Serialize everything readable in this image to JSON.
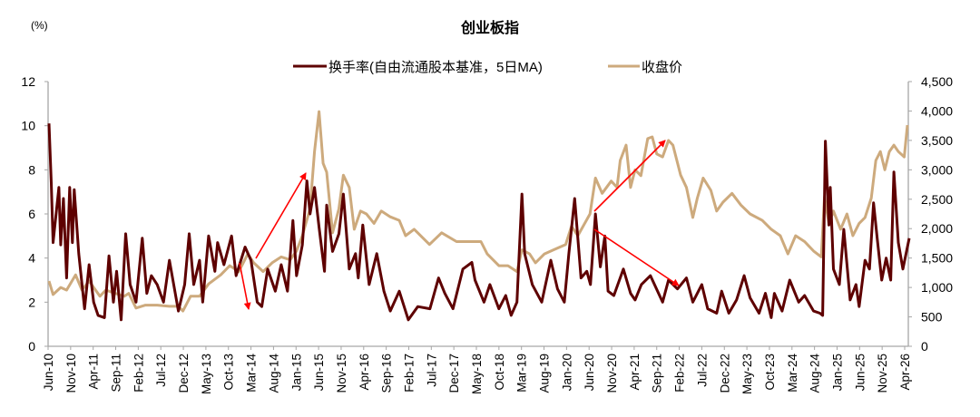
{
  "chart_data": {
    "type": "line",
    "title": "创业板指",
    "left_unit": "(%)",
    "x_unit": "months since Jun-10",
    "legend_position": "top-center",
    "ylim_left": [
      0,
      12
    ],
    "ylim_right": [
      0,
      4500
    ],
    "left_ticks": [
      "0",
      "2",
      "4",
      "6",
      "8",
      "10",
      "12"
    ],
    "left_tick_values": [
      0,
      2,
      4,
      6,
      8,
      10,
      12
    ],
    "right_ticks": [
      "0",
      "500",
      "1,000",
      "1,500",
      "2,000",
      "2,500",
      "3,000",
      "3,500",
      "4,000",
      "4,500"
    ],
    "right_tick_values": [
      0,
      500,
      1000,
      1500,
      2000,
      2500,
      3000,
      3500,
      4000,
      4500
    ],
    "x_range": [
      0,
      191
    ],
    "x_tick_labels": [
      "Jun-10",
      "Nov-10",
      "Apr-11",
      "Sep-11",
      "Feb-12",
      "Jul-12",
      "Dec-12",
      "May-13",
      "Oct-13",
      "Mar-14",
      "Aug-14",
      "Jan-15",
      "Jun-15",
      "Nov-15",
      "Apr-16",
      "Sep-16",
      "Feb-17",
      "Jul-17",
      "Dec-17",
      "May-18",
      "Oct-18",
      "Mar-19",
      "Aug-19",
      "Jan-20",
      "Jun-20",
      "Nov-20",
      "Apr-21",
      "Sep-21",
      "Feb-22",
      "Jul-22",
      "Dec-22",
      "May-23",
      "Oct-23",
      "Mar-24",
      "Aug-24",
      "Jan-25",
      "Jun-25",
      "Nov-25",
      "Apr-26"
    ],
    "x_tick_step_months": 5,
    "series": [
      {
        "name": "换手率(自由流通股本基准，5日MA)",
        "axis": "left",
        "color": "#5E0000",
        "points": [
          [
            0.2,
            10.1
          ],
          [
            0.7,
            7.4
          ],
          [
            1.1,
            4.7
          ],
          [
            2.4,
            7.2
          ],
          [
            2.8,
            4.6
          ],
          [
            3.4,
            6.7
          ],
          [
            4.1,
            3.1
          ],
          [
            4.8,
            7.2
          ],
          [
            5.4,
            4.7
          ],
          [
            5.8,
            7.1
          ],
          [
            6.8,
            4.2
          ],
          [
            8.1,
            1.7
          ],
          [
            9.1,
            3.7
          ],
          [
            10.1,
            2.0
          ],
          [
            11.1,
            1.4
          ],
          [
            12.5,
            1.3
          ],
          [
            13.5,
            4.1
          ],
          [
            14.5,
            2.0
          ],
          [
            15.2,
            3.4
          ],
          [
            16.2,
            1.2
          ],
          [
            17.2,
            5.1
          ],
          [
            18.2,
            2.8
          ],
          [
            19.5,
            2.0
          ],
          [
            20.9,
            4.9
          ],
          [
            21.9,
            2.4
          ],
          [
            22.9,
            3.2
          ],
          [
            24.2,
            2.8
          ],
          [
            25.6,
            2.0
          ],
          [
            26.9,
            3.9
          ],
          [
            28.9,
            1.6
          ],
          [
            30.3,
            2.8
          ],
          [
            31.3,
            5.1
          ],
          [
            32.3,
            2.8
          ],
          [
            33.6,
            3.9
          ],
          [
            34.3,
            2.0
          ],
          [
            35.6,
            5.0
          ],
          [
            37,
            3.4
          ],
          [
            37.6,
            4.7
          ],
          [
            39,
            3.7
          ],
          [
            40.7,
            5.0
          ],
          [
            41.7,
            3.2
          ],
          [
            43.7,
            4.5
          ],
          [
            45,
            3.9
          ],
          [
            46.4,
            2.0
          ],
          [
            47.4,
            1.8
          ],
          [
            48.7,
            3.5
          ],
          [
            50.4,
            2.5
          ],
          [
            51.7,
            3.7
          ],
          [
            53.1,
            2.5
          ],
          [
            54.3,
            5.7
          ],
          [
            55.1,
            3.2
          ],
          [
            56.4,
            4.6
          ],
          [
            57.4,
            7.5
          ],
          [
            58.1,
            6.0
          ],
          [
            59.1,
            7.2
          ],
          [
            60.1,
            5.4
          ],
          [
            61.3,
            3.4
          ],
          [
            61.8,
            6.4
          ],
          [
            63.1,
            4.3
          ],
          [
            64.5,
            5.1
          ],
          [
            65.5,
            6.9
          ],
          [
            66.8,
            3.5
          ],
          [
            68.2,
            4.2
          ],
          [
            68.8,
            3.1
          ],
          [
            69.8,
            5.5
          ],
          [
            71.2,
            2.8
          ],
          [
            72.9,
            4.2
          ],
          [
            74.5,
            2.5
          ],
          [
            75.9,
            1.6
          ],
          [
            77.9,
            2.5
          ],
          [
            79.9,
            1.2
          ],
          [
            82,
            1.8
          ],
          [
            84.7,
            1.7
          ],
          [
            86.6,
            3.1
          ],
          [
            88,
            2.4
          ],
          [
            89.8,
            1.7
          ],
          [
            92,
            3.5
          ],
          [
            94,
            3.8
          ],
          [
            94.7,
            3.0
          ],
          [
            96.7,
            2.0
          ],
          [
            98,
            2.8
          ],
          [
            100,
            1.7
          ],
          [
            101.5,
            2.3
          ],
          [
            102.7,
            1.4
          ],
          [
            104,
            2.0
          ],
          [
            105.1,
            6.9
          ],
          [
            105.7,
            4.2
          ],
          [
            107.4,
            2.8
          ],
          [
            109.5,
            2.0
          ],
          [
            111.5,
            3.9
          ],
          [
            113,
            2.6
          ],
          [
            114.5,
            2.0
          ],
          [
            115.5,
            4.2
          ],
          [
            116.8,
            6.7
          ],
          [
            118.2,
            3.1
          ],
          [
            119.5,
            3.4
          ],
          [
            120.3,
            2.8
          ],
          [
            121.4,
            6.0
          ],
          [
            122.5,
            3.6
          ],
          [
            123.5,
            5.0
          ],
          [
            124.2,
            2.5
          ],
          [
            125.5,
            2.3
          ],
          [
            127.6,
            3.5
          ],
          [
            129.2,
            2.4
          ],
          [
            130.2,
            2.1
          ],
          [
            131.6,
            2.8
          ],
          [
            133.6,
            3.2
          ],
          [
            136.3,
            2.0
          ],
          [
            137.6,
            3.0
          ],
          [
            139.6,
            2.6
          ],
          [
            141.6,
            3.1
          ],
          [
            143,
            2.0
          ],
          [
            145,
            2.8
          ],
          [
            146.3,
            1.7
          ],
          [
            148.3,
            1.5
          ],
          [
            149.4,
            2.5
          ],
          [
            151,
            1.5
          ],
          [
            152.7,
            2.1
          ],
          [
            154.4,
            3.2
          ],
          [
            155.7,
            2.2
          ],
          [
            157.7,
            1.5
          ],
          [
            159.1,
            2.4
          ],
          [
            160.4,
            1.3
          ],
          [
            161.1,
            2.4
          ],
          [
            162.8,
            1.6
          ],
          [
            164.5,
            3.0
          ],
          [
            166.5,
            2.0
          ],
          [
            167.8,
            2.3
          ],
          [
            169.8,
            1.6
          ],
          [
            171.2,
            1.5
          ],
          [
            171.8,
            1.4
          ],
          [
            172.4,
            9.3
          ],
          [
            173.2,
            5.5
          ],
          [
            173.5,
            7.2
          ],
          [
            174.2,
            3.5
          ],
          [
            175.5,
            2.8
          ],
          [
            176.5,
            5.3
          ],
          [
            177.9,
            2.1
          ],
          [
            179.2,
            2.8
          ],
          [
            179.9,
            1.8
          ],
          [
            181.2,
            3.9
          ],
          [
            182.2,
            3.5
          ],
          [
            183.1,
            6.5
          ],
          [
            183.9,
            4.9
          ],
          [
            184.9,
            3.0
          ],
          [
            185.9,
            4.0
          ],
          [
            186.9,
            3.0
          ],
          [
            187.6,
            7.9
          ],
          [
            188.6,
            4.7
          ],
          [
            189.6,
            3.5
          ],
          [
            191,
            4.9
          ]
        ]
      },
      {
        "name": "收盘价",
        "axis": "right",
        "color": "#CDAA7D",
        "points": [
          [
            0.2,
            1110
          ],
          [
            1.1,
            880
          ],
          [
            2.8,
            1000
          ],
          [
            4.1,
            955
          ],
          [
            6.1,
            1215
          ],
          [
            7.5,
            955
          ],
          [
            9.1,
            1110
          ],
          [
            11.5,
            850
          ],
          [
            12.8,
            955
          ],
          [
            14.9,
            900
          ],
          [
            16.9,
            850
          ],
          [
            17.9,
            900
          ],
          [
            19.5,
            650
          ],
          [
            21.6,
            700
          ],
          [
            24.2,
            700
          ],
          [
            26.9,
            680
          ],
          [
            28.9,
            680
          ],
          [
            29.9,
            600
          ],
          [
            31.6,
            850
          ],
          [
            33.6,
            850
          ],
          [
            35.6,
            1060
          ],
          [
            38.3,
            1215
          ],
          [
            40.3,
            1370
          ],
          [
            42.3,
            1270
          ],
          [
            44.3,
            1570
          ],
          [
            45.6,
            1420
          ],
          [
            47.7,
            1270
          ],
          [
            49.7,
            1420
          ],
          [
            51.7,
            1520
          ],
          [
            53.7,
            1470
          ],
          [
            55.1,
            1620
          ],
          [
            56.4,
            1880
          ],
          [
            58.1,
            2340
          ],
          [
            59.1,
            3310
          ],
          [
            60.1,
            3990
          ],
          [
            61,
            3110
          ],
          [
            61.8,
            2960
          ],
          [
            63.1,
            1930
          ],
          [
            64.5,
            2340
          ],
          [
            65.5,
            2910
          ],
          [
            66.8,
            2700
          ],
          [
            67.9,
            1990
          ],
          [
            69.3,
            2300
          ],
          [
            70.6,
            2250
          ],
          [
            72.3,
            2090
          ],
          [
            73.9,
            2300
          ],
          [
            75.9,
            2200
          ],
          [
            77.9,
            2140
          ],
          [
            79.3,
            1880
          ],
          [
            81.2,
            1990
          ],
          [
            84.6,
            1730
          ],
          [
            87.3,
            1930
          ],
          [
            90.6,
            1780
          ],
          [
            93.3,
            1780
          ],
          [
            96,
            1780
          ],
          [
            97.4,
            1570
          ],
          [
            100,
            1370
          ],
          [
            102,
            1370
          ],
          [
            104,
            1270
          ],
          [
            105.1,
            1640
          ],
          [
            106.8,
            1570
          ],
          [
            108.1,
            1420
          ],
          [
            110.1,
            1570
          ],
          [
            112.1,
            1640
          ],
          [
            114.8,
            1730
          ],
          [
            116.1,
            2040
          ],
          [
            117.5,
            1880
          ],
          [
            120.2,
            2250
          ],
          [
            121.4,
            2860
          ],
          [
            122.9,
            2600
          ],
          [
            124.9,
            2810
          ],
          [
            126.2,
            2700
          ],
          [
            126.9,
            3160
          ],
          [
            128.2,
            3420
          ],
          [
            129.2,
            2700
          ],
          [
            130.2,
            3000
          ],
          [
            131.5,
            2900
          ],
          [
            133,
            3530
          ],
          [
            134,
            3560
          ],
          [
            135,
            3270
          ],
          [
            136.3,
            3220
          ],
          [
            137.6,
            3500
          ],
          [
            138.6,
            3420
          ],
          [
            140.3,
            2910
          ],
          [
            141.6,
            2700
          ],
          [
            143,
            2190
          ],
          [
            144,
            2520
          ],
          [
            145.3,
            2860
          ],
          [
            147,
            2650
          ],
          [
            148.3,
            2300
          ],
          [
            149.7,
            2450
          ],
          [
            151.7,
            2600
          ],
          [
            153.7,
            2400
          ],
          [
            155.7,
            2250
          ],
          [
            158.4,
            2140
          ],
          [
            160.4,
            1990
          ],
          [
            162.4,
            1880
          ],
          [
            164.1,
            1570
          ],
          [
            165.8,
            1880
          ],
          [
            167.8,
            1780
          ],
          [
            169.8,
            1620
          ],
          [
            171.5,
            1520
          ],
          [
            172.2,
            2540
          ],
          [
            173.2,
            2090
          ],
          [
            174.2,
            2300
          ],
          [
            175.8,
            1990
          ],
          [
            177.2,
            2250
          ],
          [
            178.5,
            1880
          ],
          [
            179.9,
            2090
          ],
          [
            181.2,
            2190
          ],
          [
            182.6,
            2520
          ],
          [
            183.6,
            3160
          ],
          [
            184.6,
            3310
          ],
          [
            185.6,
            3000
          ],
          [
            186.6,
            3310
          ],
          [
            187.6,
            3420
          ],
          [
            188.6,
            3310
          ],
          [
            189.9,
            3220
          ],
          [
            190.6,
            3760
          ]
        ]
      }
    ]
  },
  "colors": {
    "annotation_arrow": "#FF0000",
    "axis": "#A6A6A6"
  }
}
